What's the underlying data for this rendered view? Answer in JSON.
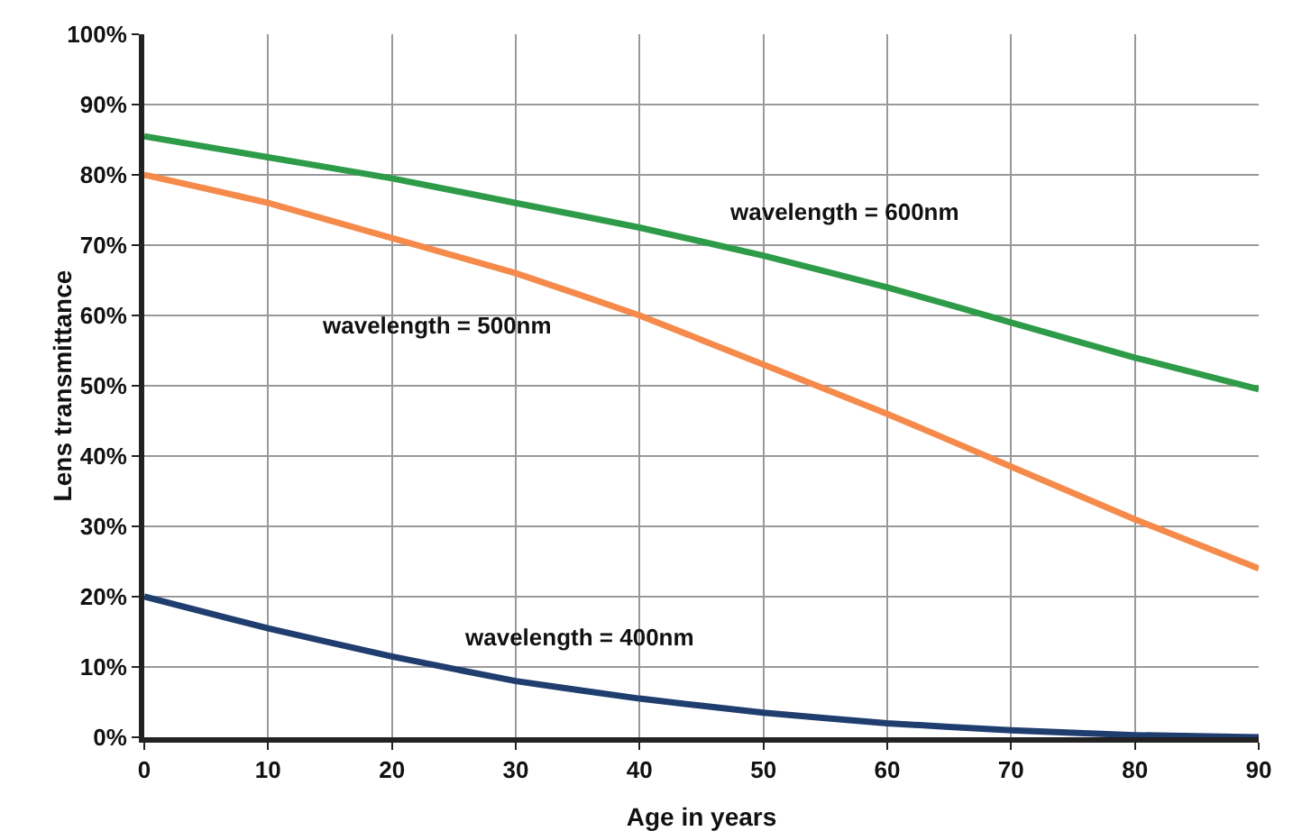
{
  "chart_data": {
    "type": "line",
    "xlabel": "Age in years",
    "ylabel": "Lens transmittance",
    "x": [
      0,
      10,
      20,
      30,
      40,
      50,
      60,
      70,
      80,
      90
    ],
    "series": [
      {
        "name": "wavelength = 600nm",
        "color": "#2e9b48",
        "values": [
          85.5,
          82.5,
          79.5,
          76,
          72.5,
          68.5,
          64,
          59,
          54,
          49.5
        ]
      },
      {
        "name": "wavelength = 500nm",
        "color": "#f58a4b",
        "values": [
          80,
          76,
          71,
          66,
          60,
          53,
          46,
          38.5,
          31,
          24
        ]
      },
      {
        "name": "wavelength = 400nm",
        "color": "#1f3d6e",
        "values": [
          20,
          15.5,
          11.5,
          8,
          5.5,
          3.5,
          2,
          1,
          0.3,
          0
        ]
      }
    ],
    "xlim": [
      0,
      90
    ],
    "xticks": [
      0,
      10,
      20,
      30,
      40,
      50,
      60,
      70,
      80,
      90
    ],
    "ylim": [
      0,
      100
    ],
    "yticks": [
      {
        "value": 0,
        "label": "0%"
      },
      {
        "value": 10,
        "label": "10%"
      },
      {
        "value": 20,
        "label": "20%"
      },
      {
        "value": 30,
        "label": "30%"
      },
      {
        "value": 40,
        "label": "40%"
      },
      {
        "value": 50,
        "label": "50%"
      },
      {
        "value": 60,
        "label": "60%"
      },
      {
        "value": 70,
        "label": "70%"
      },
      {
        "value": 80,
        "label": "80%"
      },
      {
        "value": 90,
        "label": "90%"
      },
      {
        "value": 100,
        "label": "100%"
      }
    ],
    "grid": true,
    "legend": false,
    "marker": "none",
    "line_style": "solid"
  }
}
